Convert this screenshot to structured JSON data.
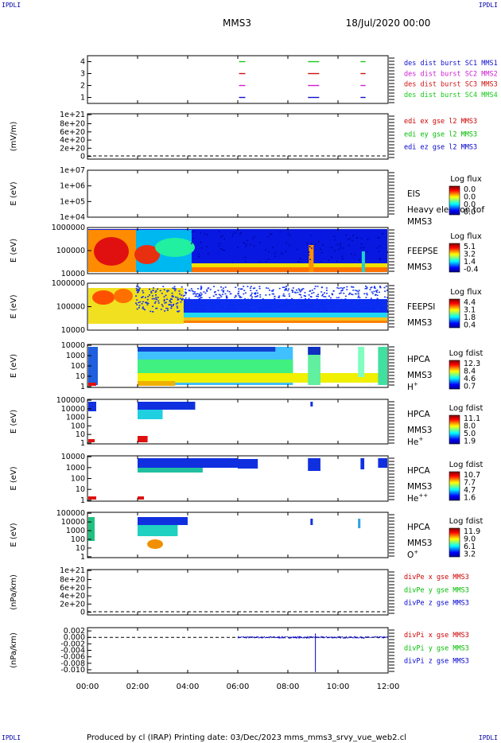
{
  "corner_tags": {
    "tl": "IPDLI",
    "tr": "IPDLI",
    "bl": "IPDLI",
    "br": "IPDLI"
  },
  "header": {
    "spacecraft": "MMS3",
    "date": "18/Jul/2020 00:00"
  },
  "footer": "Produced by cl (IRAP)   Printing date: 03/Dec/2023   mms_mms3_srvy_vue_web2.cl",
  "time_axis": {
    "ticks": [
      "00:00",
      "02:00",
      "04:00",
      "06:00",
      "08:00",
      "10:00",
      "12:00"
    ],
    "range_hours": [
      0,
      12
    ]
  },
  "colors": {
    "blue": "#1010cc",
    "magenta": "#d01bd0",
    "red": "#d01010",
    "green": "#18c818",
    "series": {
      "x": "#cc0000",
      "y": "#00bb00",
      "z": "#0000cc"
    }
  },
  "chart_data": [
    {
      "type": "line",
      "panel": "burst",
      "ylabels": [
        "4",
        "3",
        "2",
        "1"
      ],
      "ylim": [
        0.5,
        4.5
      ],
      "legend": [
        "des dist burst SC1 MMS1",
        "des dist burst SC2 MMS2",
        "des dist burst SC3 MMS3",
        "des dist burst SC4 MMS4"
      ],
      "series": [
        {
          "sc": 4,
          "segments": [
            [
              6.05,
              6.3
            ],
            [
              8.8,
              9.25
            ],
            [
              10.9,
              11.1
            ]
          ]
        },
        {
          "sc": 3,
          "segments": [
            [
              6.05,
              6.3
            ],
            [
              8.8,
              9.25
            ],
            [
              10.9,
              11.1
            ]
          ]
        },
        {
          "sc": 2,
          "segments": [
            [
              6.05,
              6.3
            ],
            [
              8.8,
              9.25
            ],
            [
              10.9,
              11.1
            ]
          ]
        },
        {
          "sc": 1,
          "segments": [
            [
              6.05,
              6.3
            ],
            [
              8.8,
              9.25
            ],
            [
              10.9,
              11.1
            ]
          ]
        }
      ]
    },
    {
      "type": "line",
      "panel": "edi",
      "ylabel": "(mV/m)",
      "ylabels": [
        "1e+21",
        "8e+20",
        "6e+20",
        "4e+20",
        "2e+20",
        "0"
      ],
      "legend": [
        "edi ex gse l2 MMS3",
        "edi ey gse l2 MMS3",
        "edi ez gse l2 MMS3"
      ]
    },
    {
      "type": "heatmap",
      "panel": "eis",
      "ylabel": "E (eV)",
      "ylabels": [
        "1e+07",
        "1e+06",
        "1e+05",
        "1e+04"
      ],
      "side": [
        "EIS",
        "Heavy electron tof",
        "MMS3"
      ],
      "cb_title": "Log flux",
      "cb_labels": [
        "0.0",
        "0.0",
        "0.0",
        "0.0"
      ]
    },
    {
      "type": "heatmap",
      "panel": "feepse",
      "ylabel": "E (eV)",
      "ylabels": [
        "1000000",
        "100000",
        "10000"
      ],
      "side": [
        "FEEPSE",
        "MMS3"
      ],
      "cb_title": "Log flux",
      "cb_labels": [
        "5.1",
        "3.2",
        "1.4",
        "-0.4"
      ]
    },
    {
      "type": "heatmap",
      "panel": "feepsi",
      "ylabel": "E (eV)",
      "ylabels": [
        "1000000",
        "100000",
        "10000"
      ],
      "side": [
        "FEEPSI",
        "MMS3"
      ],
      "cb_title": "Log flux",
      "cb_labels": [
        "4.4",
        "3.1",
        "1.8",
        "0.4"
      ]
    },
    {
      "type": "heatmap",
      "panel": "hpca_h",
      "ylabel": "E (eV)",
      "ylabels": [
        "10000",
        "1000",
        "100",
        "10",
        "1"
      ],
      "side": [
        "HPCA",
        "MMS3",
        "H+"
      ],
      "cb_title": "Log fdist",
      "cb_labels": [
        "12.3",
        "8.4",
        "4.6",
        "0.7"
      ]
    },
    {
      "type": "heatmap",
      "panel": "hpca_he",
      "ylabel": "E (eV)",
      "ylabels": [
        "100000",
        "10000",
        "1000",
        "100",
        "10",
        "1"
      ],
      "side": [
        "HPCA",
        "MMS3",
        "He+"
      ],
      "cb_title": "Log fdist",
      "cb_labels": [
        "11.1",
        "8.0",
        "5.0",
        "1.9"
      ]
    },
    {
      "type": "heatmap",
      "panel": "hpca_hepp",
      "ylabel": "E (eV)",
      "ylabels": [
        "10000",
        "1000",
        "100",
        "10",
        "1"
      ],
      "side": [
        "HPCA",
        "MMS3",
        "He++"
      ],
      "cb_title": "Log fdist",
      "cb_labels": [
        "10.7",
        "7.7",
        "4.7",
        "1.6"
      ]
    },
    {
      "type": "heatmap",
      "panel": "hpca_o",
      "ylabel": "E (eV)",
      "ylabels": [
        "100000",
        "10000",
        "1000",
        "100",
        "10",
        "1"
      ],
      "side": [
        "HPCA",
        "MMS3",
        "O+"
      ],
      "cb_title": "Log fdist",
      "cb_labels": [
        "11.9",
        "9.0",
        "6.1",
        "3.2"
      ]
    },
    {
      "type": "line",
      "panel": "divpe",
      "ylabel": "(nPa/km)",
      "ylabels": [
        "1e+21",
        "8e+20",
        "6e+20",
        "4e+20",
        "2e+20",
        "0"
      ],
      "legend": [
        "divPe x gse MMS3",
        "divPe y gse MMS3",
        "divPe z gse MMS3"
      ]
    },
    {
      "type": "line",
      "panel": "divpi",
      "ylabel": "(nPa/km)",
      "ylabels": [
        "0.002",
        "0.000",
        "-0.002",
        "-0.004",
        "-0.006",
        "-0.008",
        "-0.010"
      ],
      "ylim": [
        -0.011,
        0.003
      ],
      "legend": [
        "divPi x gse MMS3",
        "divPi y gse MMS3",
        "divPi z gse MMS3"
      ],
      "spike": {
        "t": 9.1,
        "min": -0.0107,
        "max": 0.0012
      }
    }
  ]
}
